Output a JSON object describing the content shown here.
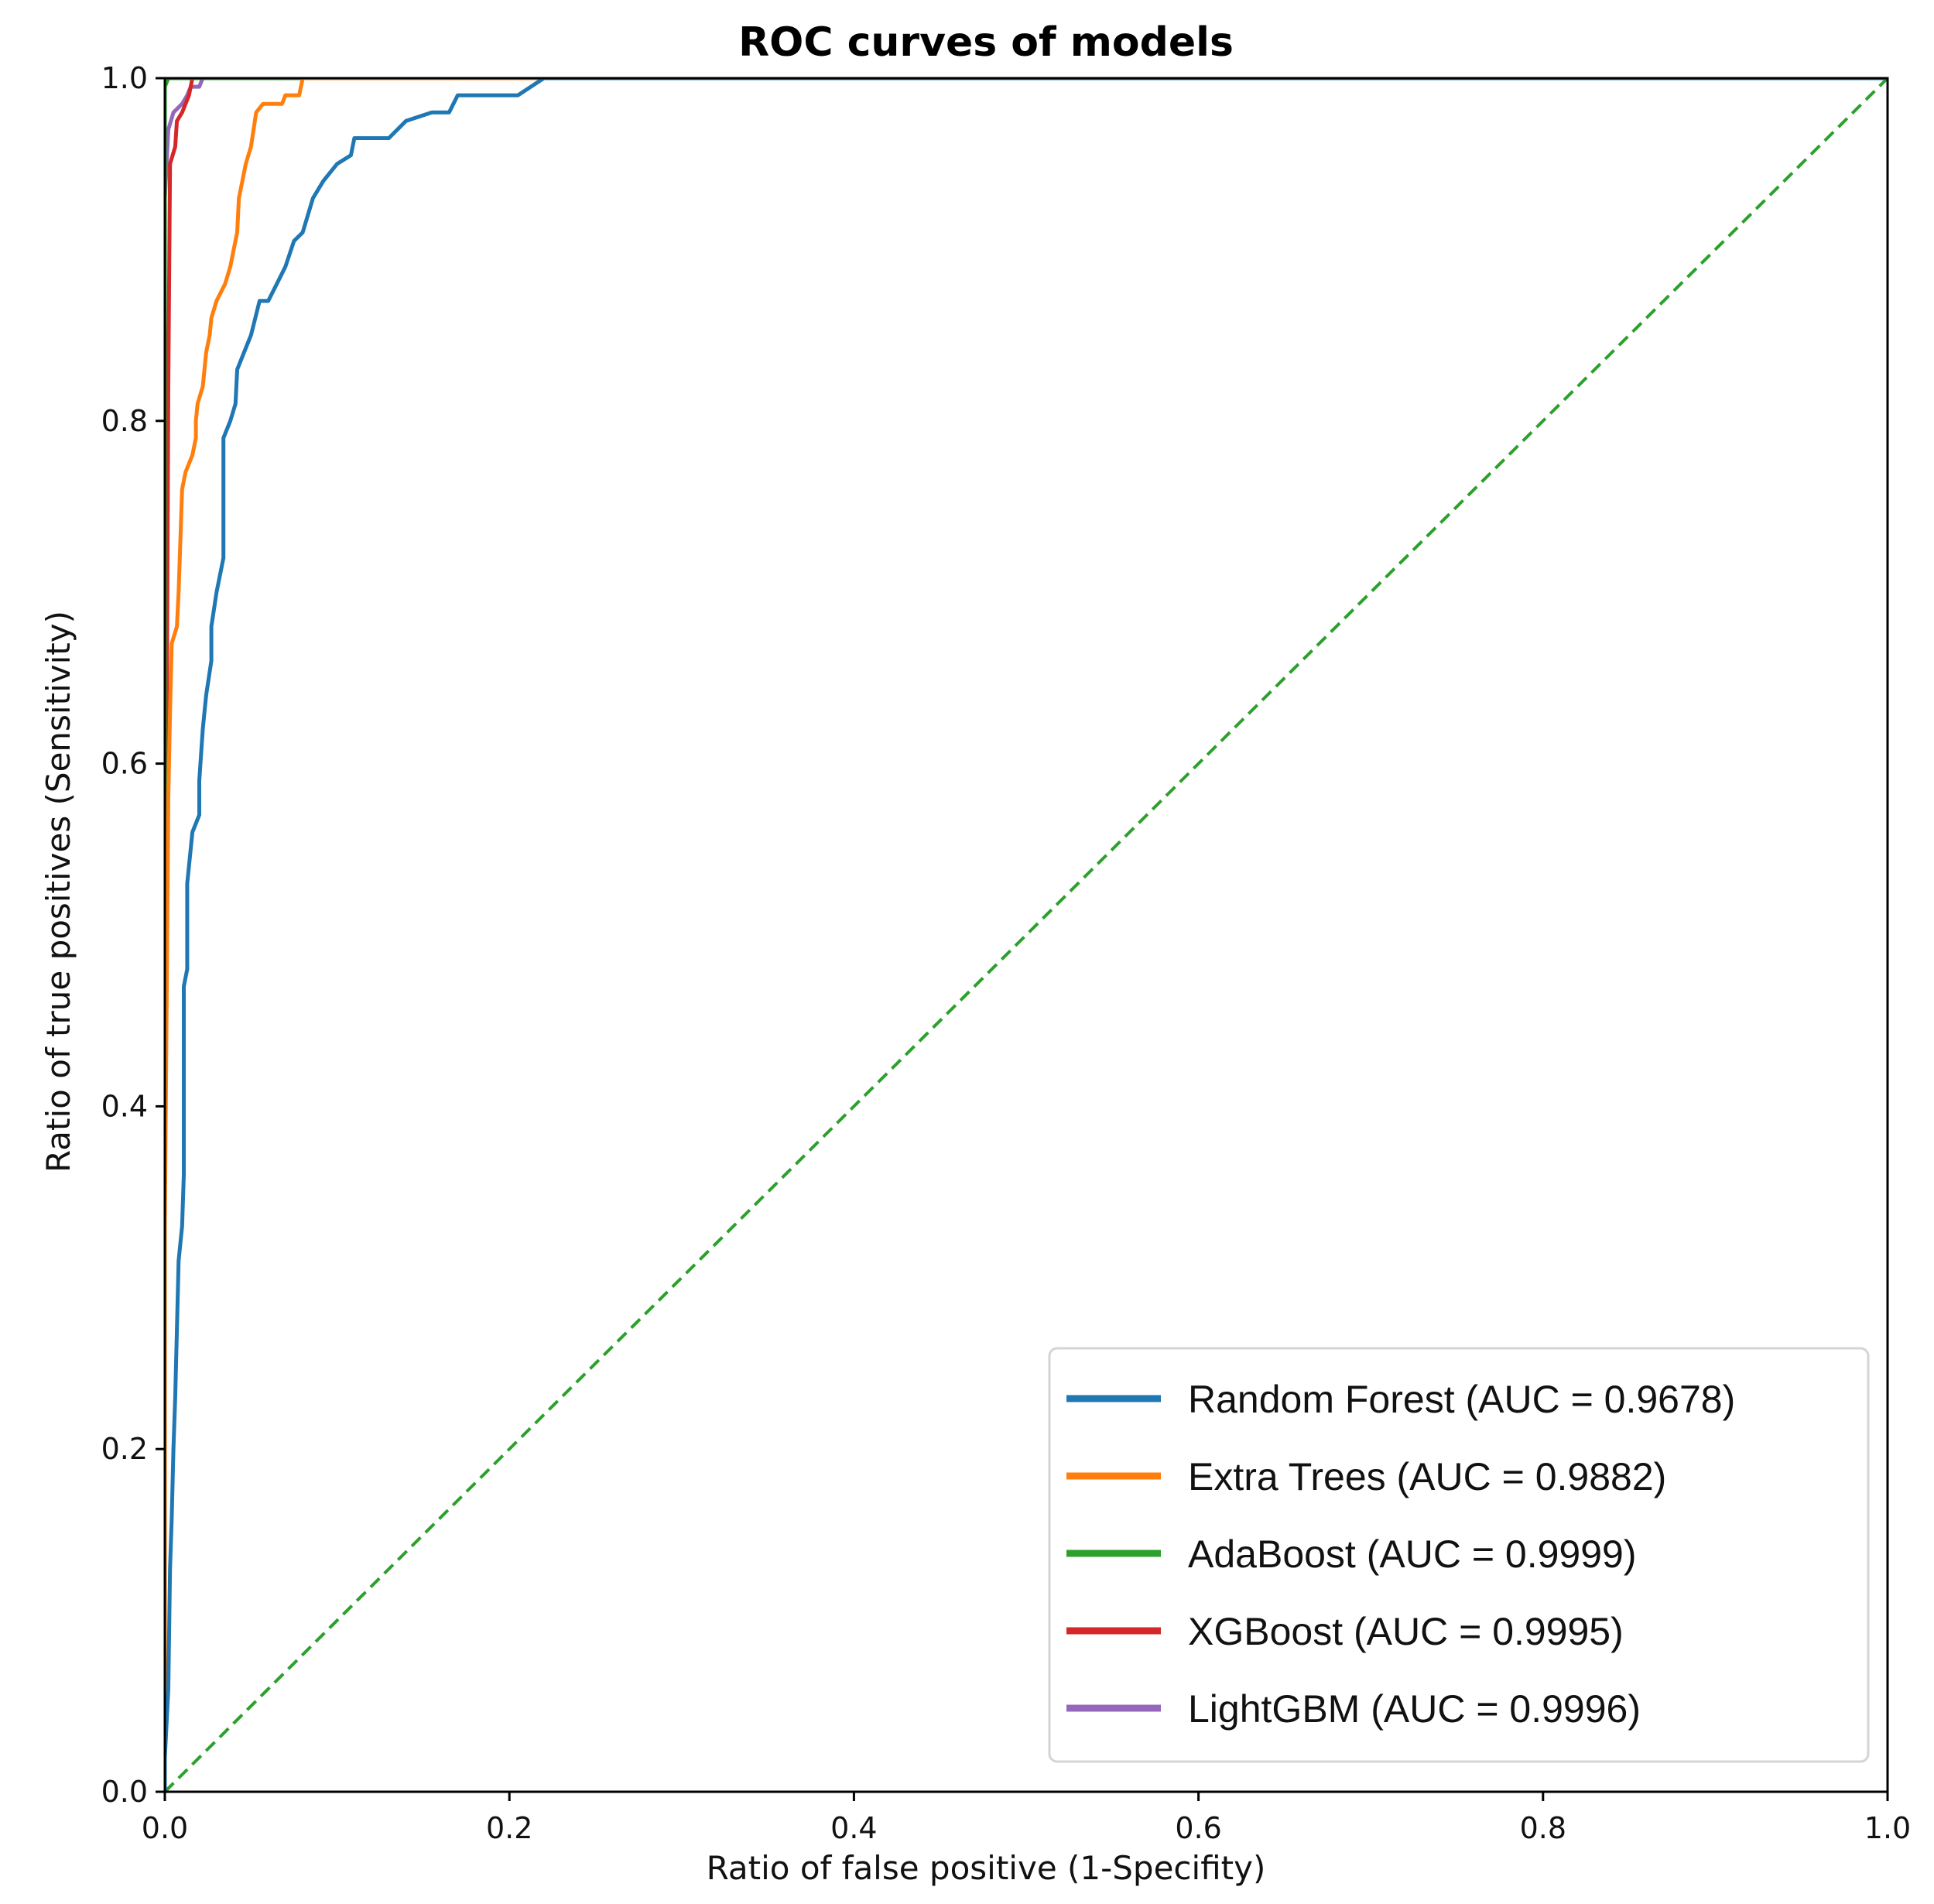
{
  "chart_data": {
    "type": "line",
    "title": "ROC curves of models",
    "xlabel": "Ratio of false positive (1-Specifity)",
    "ylabel": "Ratio of true positives (Sensitivity)",
    "xlim": [
      0.0,
      1.0
    ],
    "ylim": [
      0.0,
      1.0
    ],
    "x_ticks": [
      "0.0",
      "0.2",
      "0.4",
      "0.6",
      "0.8",
      "1.0"
    ],
    "y_ticks": [
      "0.0",
      "0.2",
      "0.4",
      "0.6",
      "0.8",
      "1.0"
    ],
    "grid": false,
    "legend_position": "lower-right",
    "series": [
      {
        "name": "Random Forest (AUC = 0.9678)",
        "color": "#1f77b4",
        "points": [
          [
            0.0,
            0.0
          ],
          [
            0.0,
            0.02
          ],
          [
            0.002,
            0.06
          ],
          [
            0.003,
            0.13
          ],
          [
            0.004,
            0.16
          ],
          [
            0.005,
            0.2
          ],
          [
            0.006,
            0.23
          ],
          [
            0.007,
            0.27
          ],
          [
            0.008,
            0.31
          ],
          [
            0.01,
            0.33
          ],
          [
            0.011,
            0.36
          ],
          [
            0.011,
            0.47
          ],
          [
            0.013,
            0.48
          ],
          [
            0.013,
            0.53
          ],
          [
            0.016,
            0.56
          ],
          [
            0.02,
            0.57
          ],
          [
            0.02,
            0.59
          ],
          [
            0.022,
            0.62
          ],
          [
            0.024,
            0.64
          ],
          [
            0.027,
            0.66
          ],
          [
            0.027,
            0.68
          ],
          [
            0.03,
            0.7
          ],
          [
            0.034,
            0.72
          ],
          [
            0.034,
            0.79
          ],
          [
            0.038,
            0.8
          ],
          [
            0.041,
            0.81
          ],
          [
            0.042,
            0.83
          ],
          [
            0.046,
            0.84
          ],
          [
            0.05,
            0.85
          ],
          [
            0.055,
            0.87
          ],
          [
            0.06,
            0.87
          ],
          [
            0.065,
            0.88
          ],
          [
            0.07,
            0.89
          ],
          [
            0.075,
            0.905
          ],
          [
            0.08,
            0.91
          ],
          [
            0.086,
            0.93
          ],
          [
            0.092,
            0.94
          ],
          [
            0.1,
            0.95
          ],
          [
            0.108,
            0.955
          ],
          [
            0.11,
            0.965
          ],
          [
            0.13,
            0.965
          ],
          [
            0.14,
            0.975
          ],
          [
            0.155,
            0.98
          ],
          [
            0.165,
            0.98
          ],
          [
            0.17,
            0.99
          ],
          [
            0.195,
            0.99
          ],
          [
            0.205,
            0.99
          ],
          [
            0.22,
            1.0
          ],
          [
            0.33,
            1.0
          ],
          [
            0.34,
            1.0
          ],
          [
            1.0,
            1.0
          ]
        ]
      },
      {
        "name": "Extra Trees (AUC = 0.9882)",
        "color": "#ff7f0e",
        "points": [
          [
            0.0,
            0.0
          ],
          [
            0.0,
            0.33
          ],
          [
            0.002,
            0.58
          ],
          [
            0.003,
            0.63
          ],
          [
            0.004,
            0.67
          ],
          [
            0.007,
            0.68
          ],
          [
            0.008,
            0.7
          ],
          [
            0.01,
            0.76
          ],
          [
            0.012,
            0.77
          ],
          [
            0.016,
            0.78
          ],
          [
            0.018,
            0.79
          ],
          [
            0.018,
            0.8
          ],
          [
            0.019,
            0.81
          ],
          [
            0.022,
            0.82
          ],
          [
            0.024,
            0.84
          ],
          [
            0.026,
            0.85
          ],
          [
            0.027,
            0.86
          ],
          [
            0.03,
            0.87
          ],
          [
            0.035,
            0.88
          ],
          [
            0.038,
            0.89
          ],
          [
            0.04,
            0.9
          ],
          [
            0.042,
            0.91
          ],
          [
            0.043,
            0.93
          ],
          [
            0.045,
            0.94
          ],
          [
            0.047,
            0.95
          ],
          [
            0.05,
            0.96
          ],
          [
            0.053,
            0.98
          ],
          [
            0.057,
            0.985
          ],
          [
            0.068,
            0.985
          ],
          [
            0.07,
            0.99
          ],
          [
            0.078,
            0.99
          ],
          [
            0.08,
            1.0
          ],
          [
            0.085,
            1.0
          ],
          [
            1.0,
            1.0
          ]
        ]
      },
      {
        "name": "AdaBoost (AUC = 0.9999)",
        "color": "#2ca02c",
        "points": [
          [
            0.0,
            0.0
          ],
          [
            0.0,
            0.995
          ],
          [
            0.002,
            1.0
          ],
          [
            1.0,
            1.0
          ]
        ]
      },
      {
        "name": "XGBoost (AUC = 0.9995)",
        "color": "#d62728",
        "points": [
          [
            0.0,
            0.0
          ],
          [
            0.0,
            0.5
          ],
          [
            0.001,
            0.6
          ],
          [
            0.002,
            0.82
          ],
          [
            0.003,
            0.95
          ],
          [
            0.006,
            0.96
          ],
          [
            0.007,
            0.975
          ],
          [
            0.01,
            0.98
          ],
          [
            0.014,
            0.99
          ],
          [
            0.016,
            1.0
          ],
          [
            1.0,
            1.0
          ]
        ]
      },
      {
        "name": "LightGBM (AUC = 0.9996)",
        "color": "#9467bd",
        "points": [
          [
            0.0,
            0.0
          ],
          [
            0.0,
            0.93
          ],
          [
            0.002,
            0.97
          ],
          [
            0.005,
            0.98
          ],
          [
            0.01,
            0.985
          ],
          [
            0.013,
            0.99
          ],
          [
            0.015,
            0.995
          ],
          [
            0.02,
            0.995
          ],
          [
            0.022,
            1.0
          ],
          [
            1.0,
            1.0
          ]
        ]
      },
      {
        "name": "",
        "color": "#2ca02c",
        "dashed": true,
        "points": [
          [
            0.0,
            0.0
          ],
          [
            1.0,
            1.0
          ]
        ]
      }
    ]
  }
}
